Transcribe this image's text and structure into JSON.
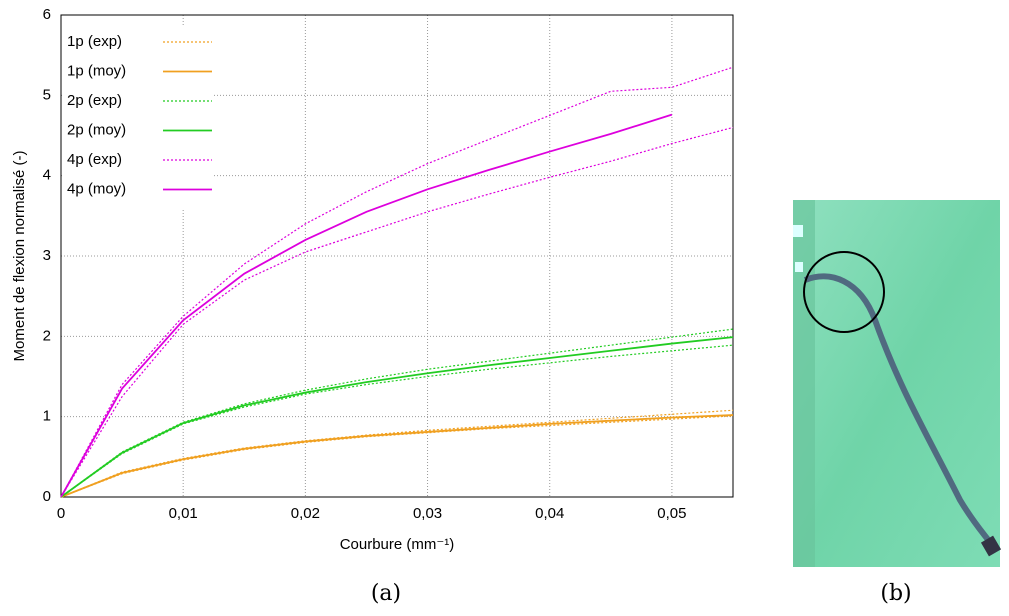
{
  "chart_data": {
    "type": "line",
    "xlabel": "Courbure (mm⁻¹)",
    "ylabel": "Moment de flexion normalisé (-)",
    "x": [
      0,
      0.005,
      0.01,
      0.015,
      0.02,
      0.025,
      0.03,
      0.035,
      0.04,
      0.045,
      0.05,
      0.055
    ],
    "xlim": [
      0,
      0.055
    ],
    "xticks": [
      0,
      {
        "value": 0.01,
        "label": "0,01"
      },
      {
        "value": 0.02,
        "label": "0,02"
      },
      {
        "value": 0.03,
        "label": "0,03"
      },
      {
        "value": 0.04,
        "label": "0,04"
      },
      {
        "value": 0.05,
        "label": "0,05"
      }
    ],
    "ylim": [
      0,
      6
    ],
    "yticks": [
      0,
      1,
      2,
      3,
      4,
      5,
      6
    ],
    "grid": true,
    "legend": "top-left",
    "series": [
      {
        "name": "1p (exp)",
        "color": "#f0a020",
        "dashed": true,
        "values": [
          0,
          0.31,
          0.48,
          0.61,
          0.7,
          0.77,
          0.83,
          0.88,
          0.93,
          0.98,
          1.03,
          1.08
        ]
      },
      {
        "name": "1p (moy)",
        "color": "#f0a020",
        "dashed": false,
        "values": [
          0,
          0.3,
          0.47,
          0.6,
          0.69,
          0.76,
          0.81,
          0.86,
          0.91,
          0.95,
          0.99,
          1.02
        ]
      },
      {
        "name": "2p (exp)",
        "color": "#22cc22",
        "dashed": true,
        "values": [
          0,
          0.56,
          0.93,
          1.16,
          1.33,
          1.47,
          1.59,
          1.69,
          1.79,
          1.89,
          1.99,
          2.09
        ]
      },
      {
        "name": "2p (moy)",
        "color": "#22cc22",
        "dashed": false,
        "values": [
          0,
          0.55,
          0.92,
          1.14,
          1.3,
          1.43,
          1.54,
          1.64,
          1.73,
          1.82,
          1.91,
          1.99
        ]
      },
      {
        "name": "4p (exp)",
        "color": "#dd00dd",
        "dashed": true,
        "values": [
          0,
          1.4,
          2.25,
          2.9,
          3.4,
          3.8,
          4.15,
          4.45,
          4.75,
          5.05,
          5.1,
          5.35
        ]
      },
      {
        "name": "4p (moy)",
        "color": "#dd00dd",
        "dashed": false,
        "values": [
          0,
          1.35,
          2.2,
          2.78,
          3.2,
          3.55,
          3.83,
          4.07,
          4.3,
          4.52,
          4.76,
          null
        ]
      },
      {
        "color": "#f0a020",
        "dashed": true,
        "values": [
          0,
          0.29,
          0.46,
          0.59,
          0.68,
          0.75,
          0.8,
          0.85,
          0.89,
          0.93,
          0.97,
          1.01
        ]
      },
      {
        "color": "#22cc22",
        "dashed": true,
        "values": [
          0,
          0.54,
          0.91,
          1.12,
          1.28,
          1.4,
          1.5,
          1.59,
          1.67,
          1.75,
          1.82,
          1.89
        ]
      },
      {
        "color": "#dd00dd",
        "dashed": true,
        "values": [
          0,
          1.25,
          2.15,
          2.7,
          3.05,
          3.3,
          3.55,
          3.77,
          3.98,
          4.18,
          4.4,
          4.6
        ]
      }
    ]
  },
  "panel_labels": [
    "(a)",
    "(b)"
  ]
}
